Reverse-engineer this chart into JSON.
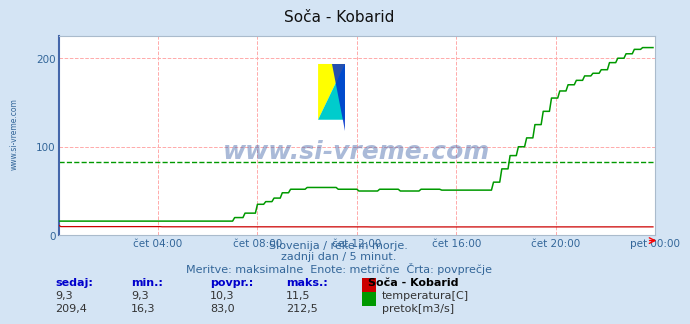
{
  "title": "Soča - Kobarid",
  "bg_color": "#d4e4f4",
  "plot_bg_color": "#ffffff",
  "grid_color_h": "#ffcccc",
  "grid_color_v": "#ccccff",
  "avg_line_color": "#009900",
  "avg_line_value": 83.0,
  "xlabel_ticks": [
    "čet 04:00",
    "čet 08:00",
    "čet 12:00",
    "čet 16:00",
    "čet 20:00",
    "pet 00:00"
  ],
  "xtick_positions": [
    48,
    96,
    144,
    192,
    240,
    288
  ],
  "ytick_positions": [
    0,
    100,
    200
  ],
  "ylim": [
    0,
    225
  ],
  "xlim": [
    0,
    288
  ],
  "temp_color": "#cc0000",
  "flow_color": "#009900",
  "watermark_text": "www.si-vreme.com",
  "watermark_color": "#4466aa",
  "side_text": "www.si-vreme.com",
  "subtitle1": "Slovenija / reke in morje.",
  "subtitle2": "zadnji dan / 5 minut.",
  "subtitle3": "Meritve: maksimalne  Enote: metrične  Črta: povprečje",
  "legend_title": "Soča - Kobarid",
  "legend_items": [
    {
      "label": "temperatura[C]",
      "color": "#cc0000"
    },
    {
      "label": "pretok[m3/s]",
      "color": "#009900"
    }
  ],
  "stats_headers": [
    "sedaj:",
    "min.:",
    "povpr.:",
    "maks.:"
  ],
  "stats_temp": [
    "9,3",
    "9,3",
    "10,3",
    "11,5"
  ],
  "stats_flow": [
    "209,4",
    "16,3",
    "83,0",
    "212,5"
  ],
  "axis_color": "#4466aa",
  "tick_color": "#336699"
}
